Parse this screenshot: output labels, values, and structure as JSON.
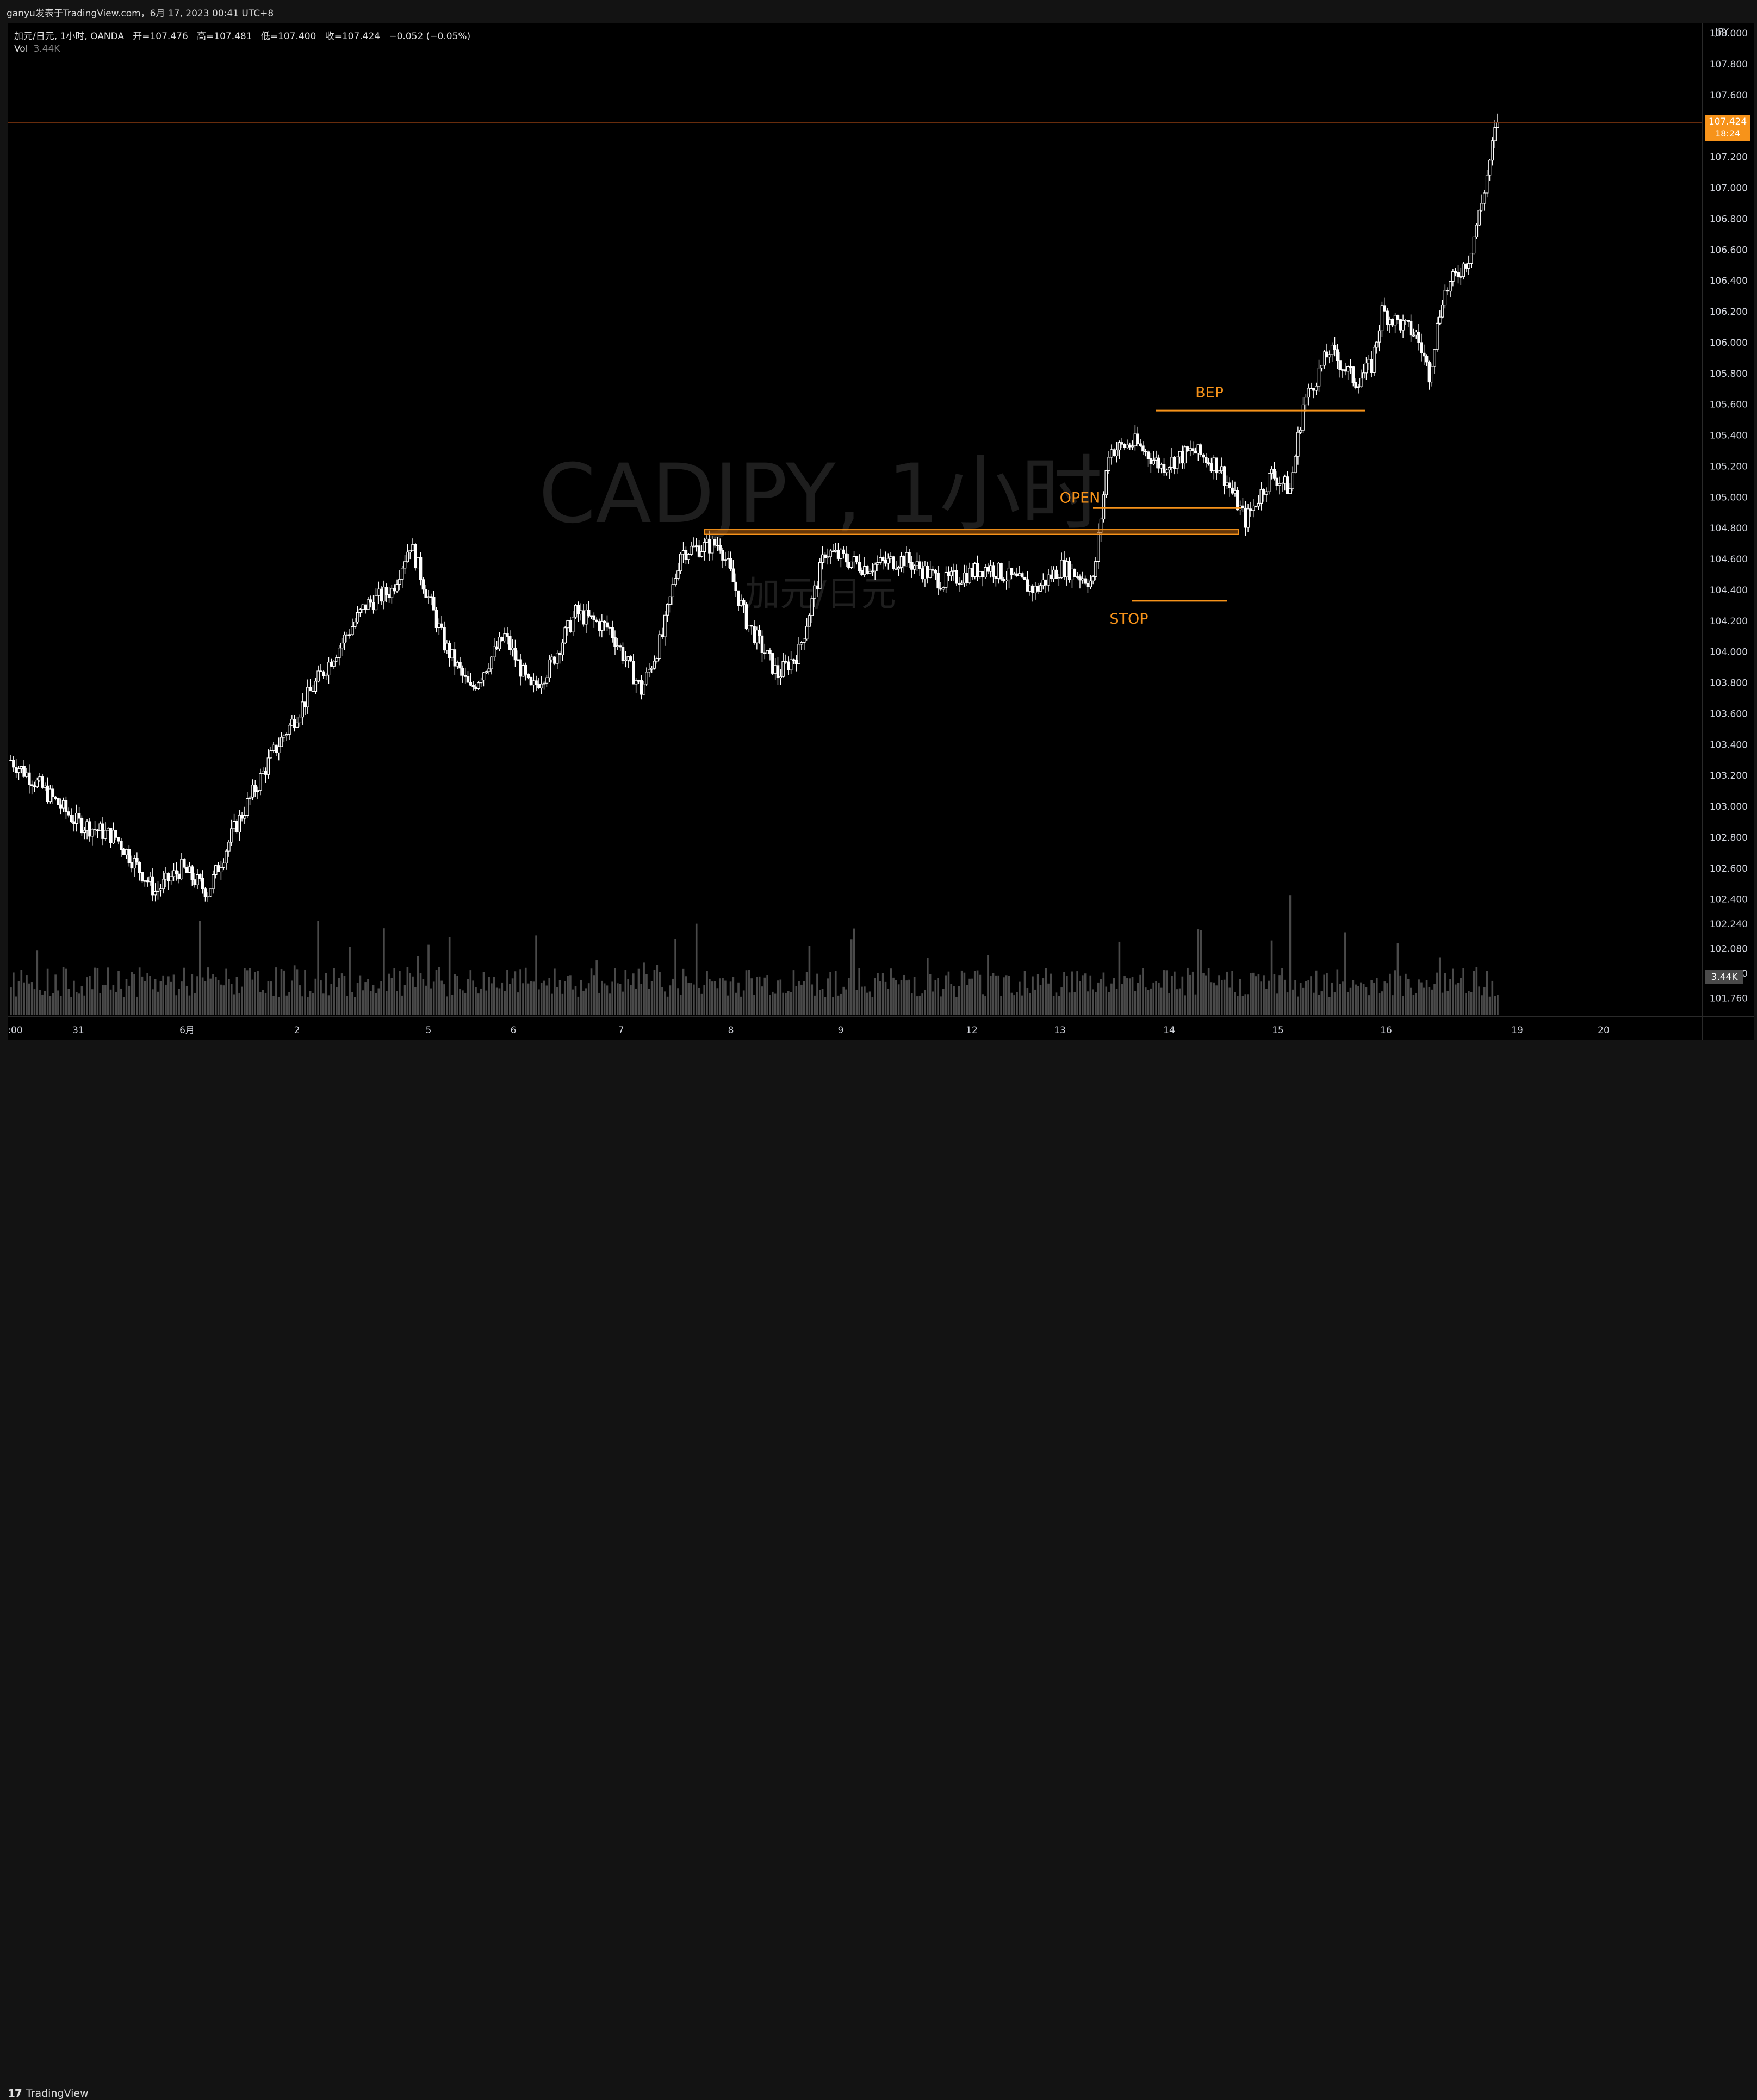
{
  "header": {
    "publisher": "ganyu发表于TradingView.com，6月 17, 2023 00:41 UTC+8"
  },
  "legend": {
    "symbol": "加元/日元, 1小时, OANDA",
    "open_label": "开",
    "open": "107.476",
    "high_label": "高",
    "high": "107.481",
    "low_label": "低",
    "low": "107.400",
    "close_label": "收",
    "close": "107.424",
    "change": "−0.052 (−0.05%)",
    "vol_label": "Vol",
    "vol_value": "3.44K"
  },
  "footer": {
    "brand": "TradingView",
    "brand_mark": "17"
  },
  "colors": {
    "background": "#000000",
    "frame": "#131313",
    "candle": "#ffffff",
    "volume": "#4a4a4a",
    "accent_orange": "#f7931a",
    "price_line": "#8b3a10"
  },
  "chart_data": {
    "type": "candlestick",
    "watermark": "CADJPY, 1小时",
    "watermark_sub": "加元/日元",
    "currency": "JPY",
    "ylim": [
      101.65,
      108.05
    ],
    "y_ticks": [
      "108.000",
      "107.800",
      "107.600",
      "107.400",
      "107.200",
      "107.000",
      "106.800",
      "106.600",
      "106.400",
      "106.200",
      "106.000",
      "105.800",
      "105.600",
      "105.400",
      "105.200",
      "105.000",
      "104.800",
      "104.600",
      "104.400",
      "104.200",
      "104.000",
      "103.800",
      "103.600",
      "103.400",
      "103.200",
      "103.000",
      "102.800",
      "102.600",
      "102.400",
      "102.240",
      "102.080",
      "101.920",
      "101.760"
    ],
    "x_ticks": [
      ":00",
      "31",
      "6月",
      "2",
      "5",
      "6",
      "7",
      "8",
      "9",
      "12",
      "13",
      "14",
      "15",
      "16",
      "19",
      "20"
    ],
    "last_price": {
      "value": "107.424",
      "countdown": "18:24"
    },
    "last_volume": "3.44K",
    "anchors": [
      [
        0,
        103.3
      ],
      [
        10,
        103.15
      ],
      [
        25,
        102.9
      ],
      [
        40,
        102.8
      ],
      [
        55,
        102.45
      ],
      [
        65,
        102.6
      ],
      [
        75,
        102.45
      ],
      [
        85,
        102.85
      ],
      [
        100,
        103.35
      ],
      [
        118,
        103.85
      ],
      [
        135,
        104.3
      ],
      [
        145,
        104.4
      ],
      [
        152,
        104.7
      ],
      [
        165,
        104.05
      ],
      [
        175,
        103.75
      ],
      [
        188,
        104.1
      ],
      [
        198,
        103.75
      ],
      [
        205,
        103.9
      ],
      [
        215,
        104.25
      ],
      [
        228,
        104.15
      ],
      [
        240,
        103.75
      ],
      [
        248,
        104.1
      ],
      [
        255,
        104.65
      ],
      [
        270,
        104.7
      ],
      [
        280,
        104.2
      ],
      [
        292,
        103.85
      ],
      [
        300,
        104.0
      ],
      [
        310,
        104.65
      ],
      [
        325,
        104.55
      ],
      [
        340,
        104.6
      ],
      [
        355,
        104.45
      ],
      [
        372,
        104.55
      ],
      [
        390,
        104.4
      ],
      [
        400,
        104.55
      ],
      [
        412,
        104.45
      ],
      [
        418,
        105.3
      ],
      [
        428,
        105.35
      ],
      [
        438,
        105.2
      ],
      [
        450,
        105.3
      ],
      [
        460,
        105.2
      ],
      [
        470,
        104.85
      ],
      [
        480,
        105.15
      ],
      [
        487,
        105.05
      ],
      [
        492,
        105.6
      ],
      [
        502,
        105.95
      ],
      [
        512,
        105.75
      ],
      [
        518,
        105.85
      ],
      [
        522,
        106.2
      ],
      [
        535,
        106.05
      ],
      [
        540,
        105.8
      ],
      [
        545,
        106.3
      ],
      [
        555,
        106.55
      ],
      [
        560,
        106.9
      ],
      [
        566,
        107.45
      ]
    ],
    "annotations": [
      {
        "label": "BEP",
        "price": 105.56
      },
      {
        "label": "OPEN",
        "price": 104.93
      },
      {
        "label": "STOP",
        "price": 104.33
      }
    ],
    "resistance_zone": [
      104.76,
      104.79
    ]
  }
}
